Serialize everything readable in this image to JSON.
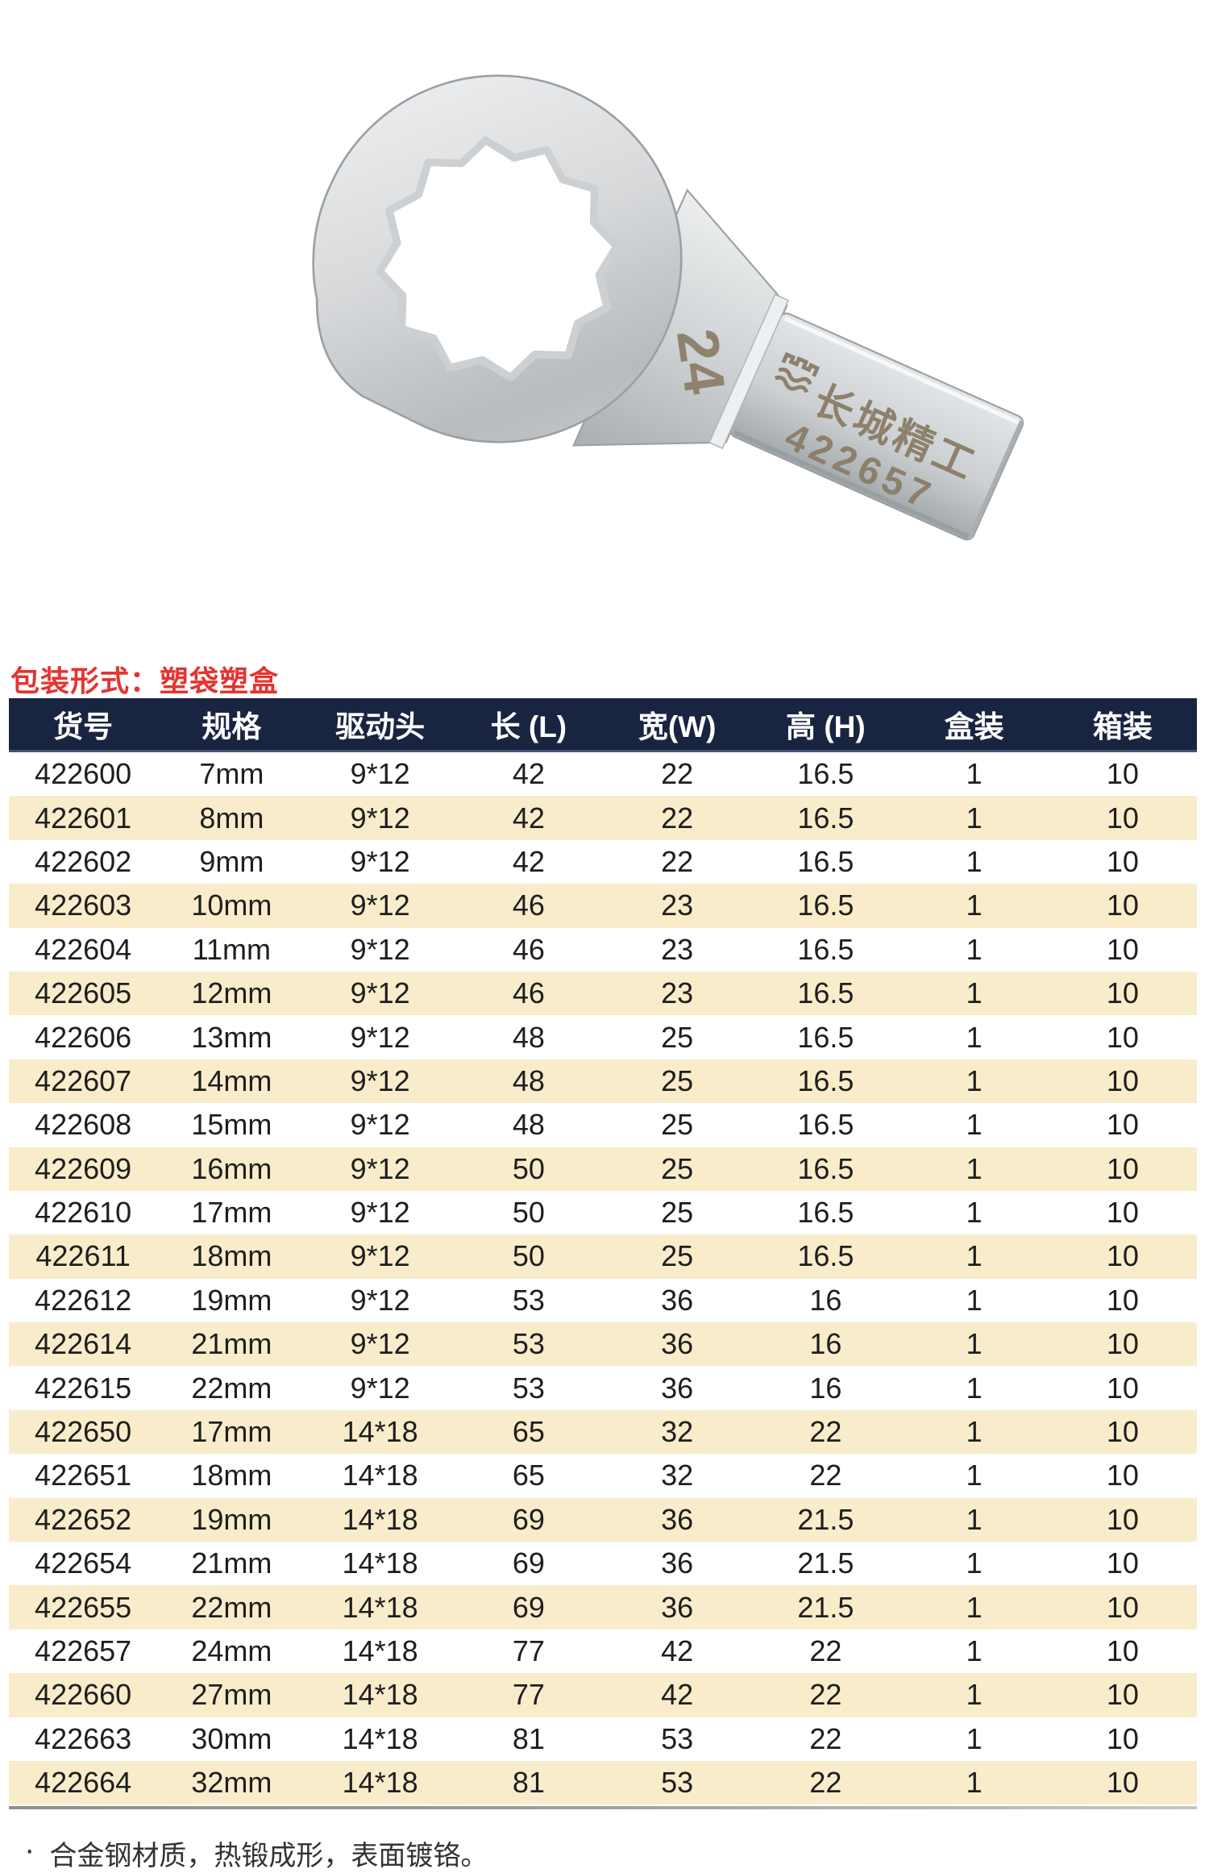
{
  "product_photo": {
    "description": "ring-end torque wrench insert head, chrome plated",
    "size_engraving": "24",
    "brand_engraving": "长城精工",
    "model_engraving": "422657"
  },
  "packaging": {
    "label": "包装形式：塑袋塑盒"
  },
  "table": {
    "headers": [
      "货号",
      "规格",
      "驱动头",
      "长 (L)",
      "宽(W)",
      "高 (H)",
      "盒装",
      "箱装"
    ],
    "rows": [
      [
        "422600",
        "7mm",
        "9*12",
        "42",
        "22",
        "16.5",
        "1",
        "10"
      ],
      [
        "422601",
        "8mm",
        "9*12",
        "42",
        "22",
        "16.5",
        "1",
        "10"
      ],
      [
        "422602",
        "9mm",
        "9*12",
        "42",
        "22",
        "16.5",
        "1",
        "10"
      ],
      [
        "422603",
        "10mm",
        "9*12",
        "46",
        "23",
        "16.5",
        "1",
        "10"
      ],
      [
        "422604",
        "11mm",
        "9*12",
        "46",
        "23",
        "16.5",
        "1",
        "10"
      ],
      [
        "422605",
        "12mm",
        "9*12",
        "46",
        "23",
        "16.5",
        "1",
        "10"
      ],
      [
        "422606",
        "13mm",
        "9*12",
        "48",
        "25",
        "16.5",
        "1",
        "10"
      ],
      [
        "422607",
        "14mm",
        "9*12",
        "48",
        "25",
        "16.5",
        "1",
        "10"
      ],
      [
        "422608",
        "15mm",
        "9*12",
        "48",
        "25",
        "16.5",
        "1",
        "10"
      ],
      [
        "422609",
        "16mm",
        "9*12",
        "50",
        "25",
        "16.5",
        "1",
        "10"
      ],
      [
        "422610",
        "17mm",
        "9*12",
        "50",
        "25",
        "16.5",
        "1",
        "10"
      ],
      [
        "422611",
        "18mm",
        "9*12",
        "50",
        "25",
        "16.5",
        "1",
        "10"
      ],
      [
        "422612",
        "19mm",
        "9*12",
        "53",
        "36",
        "16",
        "1",
        "10"
      ],
      [
        "422614",
        "21mm",
        "9*12",
        "53",
        "36",
        "16",
        "1",
        "10"
      ],
      [
        "422615",
        "22mm",
        "9*12",
        "53",
        "36",
        "16",
        "1",
        "10"
      ],
      [
        "422650",
        "17mm",
        "14*18",
        "65",
        "32",
        "22",
        "1",
        "10"
      ],
      [
        "422651",
        "18mm",
        "14*18",
        "65",
        "32",
        "22",
        "1",
        "10"
      ],
      [
        "422652",
        "19mm",
        "14*18",
        "69",
        "36",
        "21.5",
        "1",
        "10"
      ],
      [
        "422654",
        "21mm",
        "14*18",
        "69",
        "36",
        "21.5",
        "1",
        "10"
      ],
      [
        "422655",
        "22mm",
        "14*18",
        "69",
        "36",
        "21.5",
        "1",
        "10"
      ],
      [
        "422657",
        "24mm",
        "14*18",
        "77",
        "42",
        "22",
        "1",
        "10"
      ],
      [
        "422660",
        "27mm",
        "14*18",
        "77",
        "42",
        "22",
        "1",
        "10"
      ],
      [
        "422663",
        "30mm",
        "14*18",
        "81",
        "53",
        "22",
        "1",
        "10"
      ],
      [
        "422664",
        "32mm",
        "14*18",
        "81",
        "53",
        "22",
        "1",
        "10"
      ]
    ]
  },
  "footnote": {
    "bullet": "·",
    "text": "合金钢材质，热锻成形，表面镀铬。"
  },
  "colors": {
    "header_bg": "#192441",
    "header_text": "#ffffff",
    "row_alt": "#f8ecca",
    "accent_red": "#e43430",
    "engraving": "#8a7d68",
    "body_text": "#1e1e1e"
  }
}
